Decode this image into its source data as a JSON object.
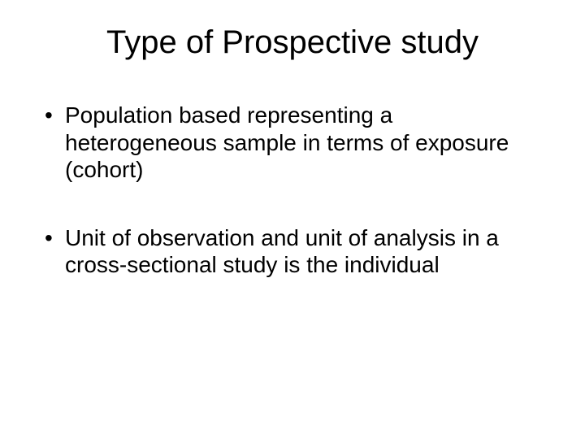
{
  "slide": {
    "title": "Type of Prospective study",
    "bullets": [
      "Population based representing a heterogeneous sample in terms of exposure (cohort)",
      "Unit of observation and unit of analysis in a cross-sectional study is the individual"
    ],
    "colors": {
      "background": "#ffffff",
      "text": "#000000"
    },
    "typography": {
      "title_fontsize": 40,
      "body_fontsize": 28,
      "font_family": "Arial"
    }
  }
}
